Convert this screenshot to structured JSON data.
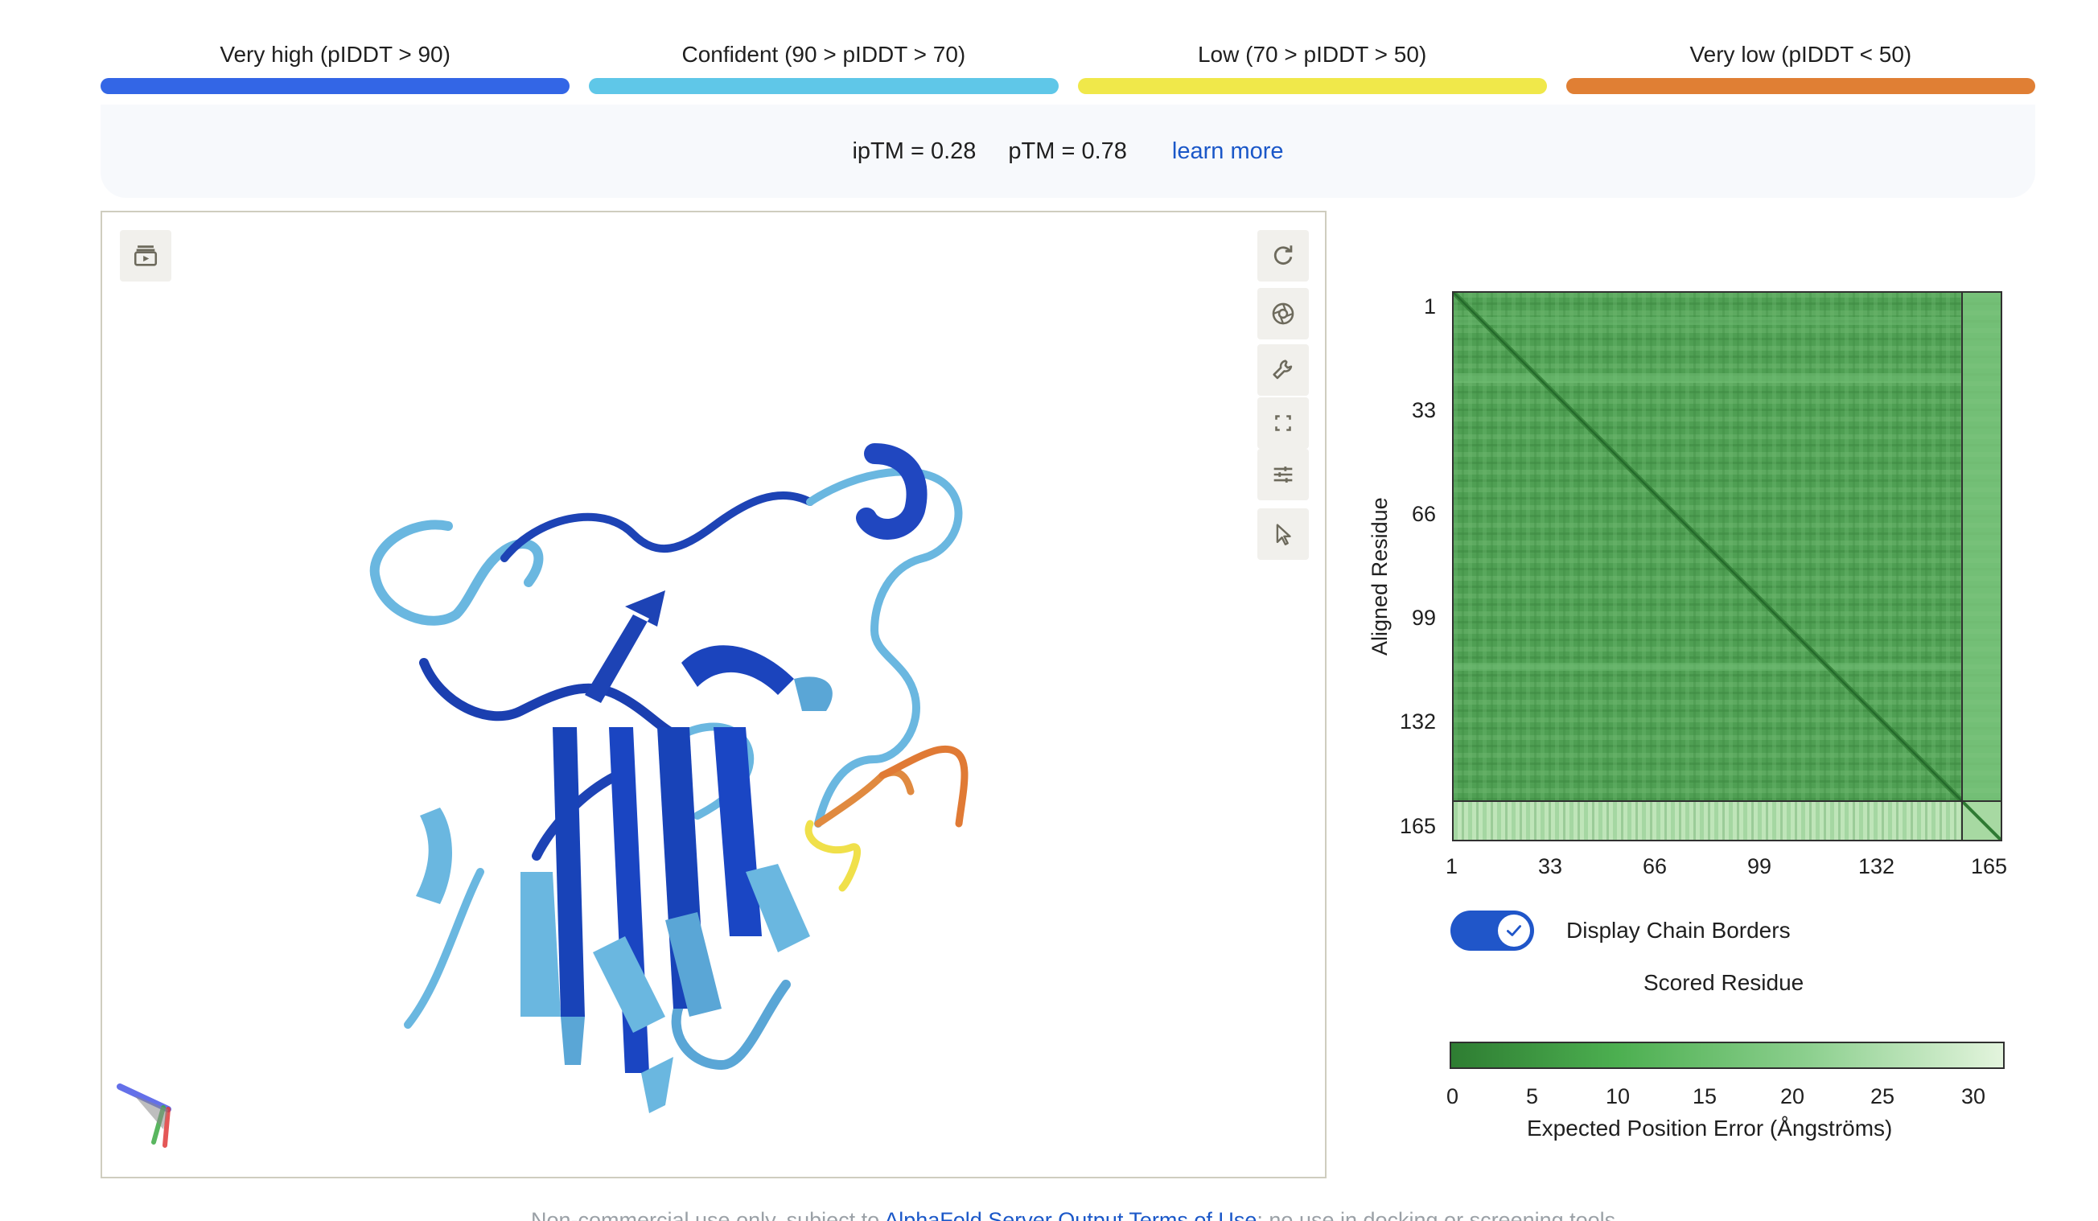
{
  "legend": [
    {
      "label": "Very high (pIDDT > 90)",
      "color": "#3366e6"
    },
    {
      "label": "Confident (90 > pIDDT > 70)",
      "color": "#5fc7e8"
    },
    {
      "label": "Low (70 > pIDDT > 50)",
      "color": "#f0e84a"
    },
    {
      "label": "Very low (pIDDT < 50)",
      "color": "#e07f34"
    }
  ],
  "metrics": {
    "iptm": "ipTM = 0.28",
    "ptm": "pTM = 0.78",
    "learn_more": "learn more"
  },
  "viewer": {
    "icons": [
      "animation-icon",
      "rotate-icon",
      "camera-icon",
      "wrench-icon",
      "fullscreen-icon",
      "sliders-icon",
      "cursor-icon"
    ]
  },
  "pae": {
    "y_axis_label": "Aligned Residue",
    "x_axis_label": "Scored Residue",
    "ticks": [
      "1",
      "33",
      "66",
      "99",
      "132",
      "165"
    ],
    "toggle_label": "Display Chain Borders",
    "toggle_on": true,
    "colorbar_ticks": [
      "0",
      "5",
      "10",
      "15",
      "20",
      "25",
      "30"
    ],
    "colorbar_label": "Expected Position Error (Ångströms)"
  },
  "footer": {
    "prefix": "Non-commercial use only, subject to ",
    "link": "AlphaFold Server Output Terms of Use",
    "suffix": "; no use in docking or screening tools"
  },
  "colors": {
    "very_high": "#3366e6",
    "confident": "#5fc7e8",
    "low": "#f0e84a",
    "very_low": "#e07f34",
    "accent": "#1a57c8"
  }
}
